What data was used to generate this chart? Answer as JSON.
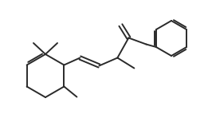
{
  "bg_color": "white",
  "line_color": "#2a2a2a",
  "lw": 1.4,
  "figsize": [
    2.61,
    1.58
  ],
  "dpi": 100,
  "xlim": [
    0,
    261
  ],
  "ylim": [
    0,
    158
  ]
}
